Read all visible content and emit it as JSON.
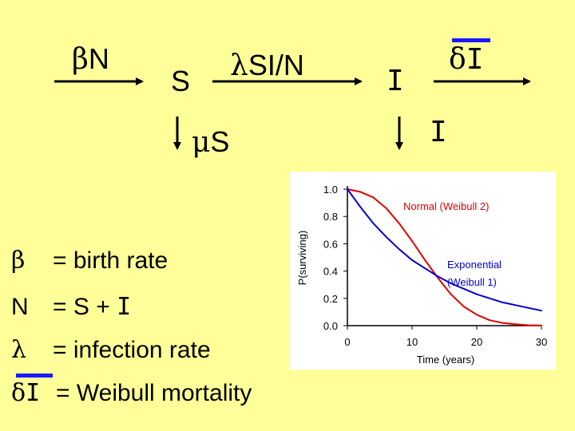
{
  "diagram": {
    "birth_greek": "β",
    "birth_var": "N",
    "box_s": "S",
    "infection_greek": "λ",
    "infection_term": "SI/N",
    "box_i": "I",
    "mortality_greek": "δ",
    "mortality_var": "I",
    "death_greek": "μ",
    "death_var": "S",
    "death_i_var": "I"
  },
  "legend": {
    "beta_symbol": "β",
    "beta_def": "= birth rate",
    "n_symbol": "N",
    "n_def_eq": "= S +",
    "n_def_var": "I",
    "lambda_symbol": "λ",
    "lambda_def": "= infection rate",
    "delta_symbol_greek": "δ",
    "delta_symbol_var": "I",
    "delta_def": "= Weibull mortality"
  },
  "chart_data": {
    "type": "line",
    "xlabel": "Time (years)",
    "ylabel": "P(surviving)",
    "xlim": [
      0,
      30
    ],
    "ylim": [
      0,
      1.0
    ],
    "x_ticks": [
      "0",
      "10",
      "20",
      "30"
    ],
    "y_ticks": [
      "0.0",
      "0.2",
      "0.4",
      "0.6",
      "0.8",
      "1.0"
    ],
    "grid": false,
    "series": [
      {
        "name": "Normal (Weibull 2)",
        "color": "#e00000",
        "x": [
          0,
          2,
          4,
          6,
          8,
          10,
          12,
          14,
          16,
          18,
          20,
          22,
          24,
          26,
          28,
          30
        ],
        "y": [
          1.0,
          0.98,
          0.94,
          0.86,
          0.75,
          0.62,
          0.48,
          0.35,
          0.23,
          0.14,
          0.08,
          0.04,
          0.02,
          0.01,
          0.003,
          0.001
        ]
      },
      {
        "name": "Exponential (Weibull 1)",
        "color": "#0000cc",
        "x": [
          0,
          2,
          4,
          6,
          8,
          10,
          12,
          14,
          16,
          18,
          20,
          22,
          24,
          26,
          28,
          30
        ],
        "y": [
          1.0,
          0.87,
          0.75,
          0.65,
          0.56,
          0.48,
          0.42,
          0.36,
          0.31,
          0.27,
          0.23,
          0.2,
          0.17,
          0.15,
          0.13,
          0.11
        ]
      }
    ],
    "annotations": [
      {
        "text": "Normal (Weibull 2)",
        "color": "#e00000"
      },
      {
        "text": "Exponential",
        "color": "#0000cc"
      },
      {
        "text": "(Weibull 1)",
        "color": "#0000cc"
      }
    ]
  }
}
